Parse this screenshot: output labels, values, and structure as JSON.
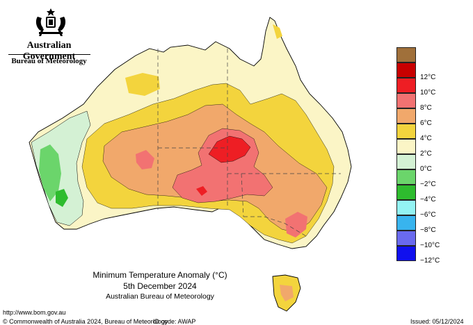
{
  "branding": {
    "government": "Australian Government",
    "department": "Bureau of Meteorology"
  },
  "title": {
    "line1": "Minimum Temperature Anomaly (°C)",
    "line2": "5th December 2024",
    "line3": "Australian Bureau of Meteorology"
  },
  "legend": {
    "bins": [
      {
        "label": "",
        "color": "#a0703a"
      },
      {
        "label": "12°C",
        "color": "#c80000"
      },
      {
        "label": "10°C",
        "color": "#ee1e24"
      },
      {
        "label": "8°C",
        "color": "#f27272"
      },
      {
        "label": "6°C",
        "color": "#f1a86b"
      },
      {
        "label": "4°C",
        "color": "#f3d43d"
      },
      {
        "label": "2°C",
        "color": "#fbf5c6"
      },
      {
        "label": "0°C",
        "color": "#d4f1d4"
      },
      {
        "label": "−2°C",
        "color": "#6bd56b"
      },
      {
        "label": "−4°C",
        "color": "#2ebc2e"
      },
      {
        "label": "−6°C",
        "color": "#93f3f3"
      },
      {
        "label": "−8°C",
        "color": "#38b4ee"
      },
      {
        "label": "−10°C",
        "color": "#6a6aee"
      },
      {
        "label": "−12°C",
        "color": "#1010ee"
      }
    ]
  },
  "footer": {
    "url": "http://www.bom.gov.au",
    "copyright": "© Commonwealth of Australia 2024, Bureau of Meteorology",
    "id_code": "ID code: AWAP",
    "issued": "Issued: 05/12/2024"
  }
}
